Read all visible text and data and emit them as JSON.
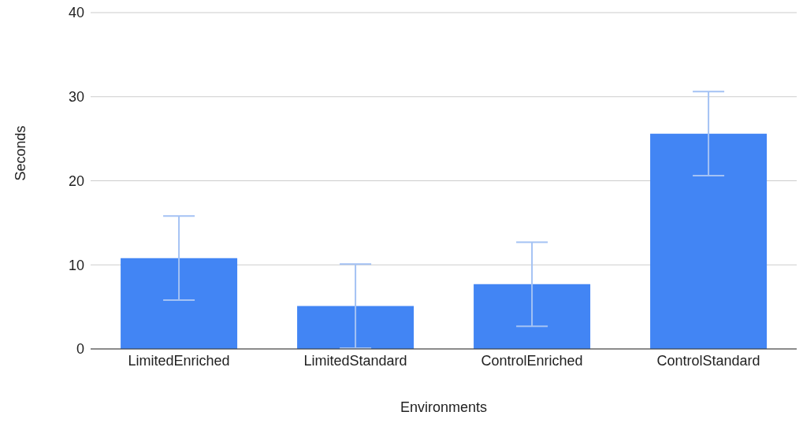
{
  "chart_data": {
    "type": "bar",
    "xlabel": "Environments",
    "ylabel": "Seconds",
    "categories": [
      "LimitedEnriched",
      "LimitedStandard",
      "ControlEnriched",
      "ControlStandard"
    ],
    "values": [
      10.8,
      5.1,
      7.7,
      25.6
    ],
    "errors": [
      5,
      5,
      5,
      5
    ],
    "color": "#4285f4",
    "ylim": [
      0,
      40
    ],
    "yticks": [
      0,
      10,
      20,
      30,
      40
    ],
    "grid": "y"
  }
}
